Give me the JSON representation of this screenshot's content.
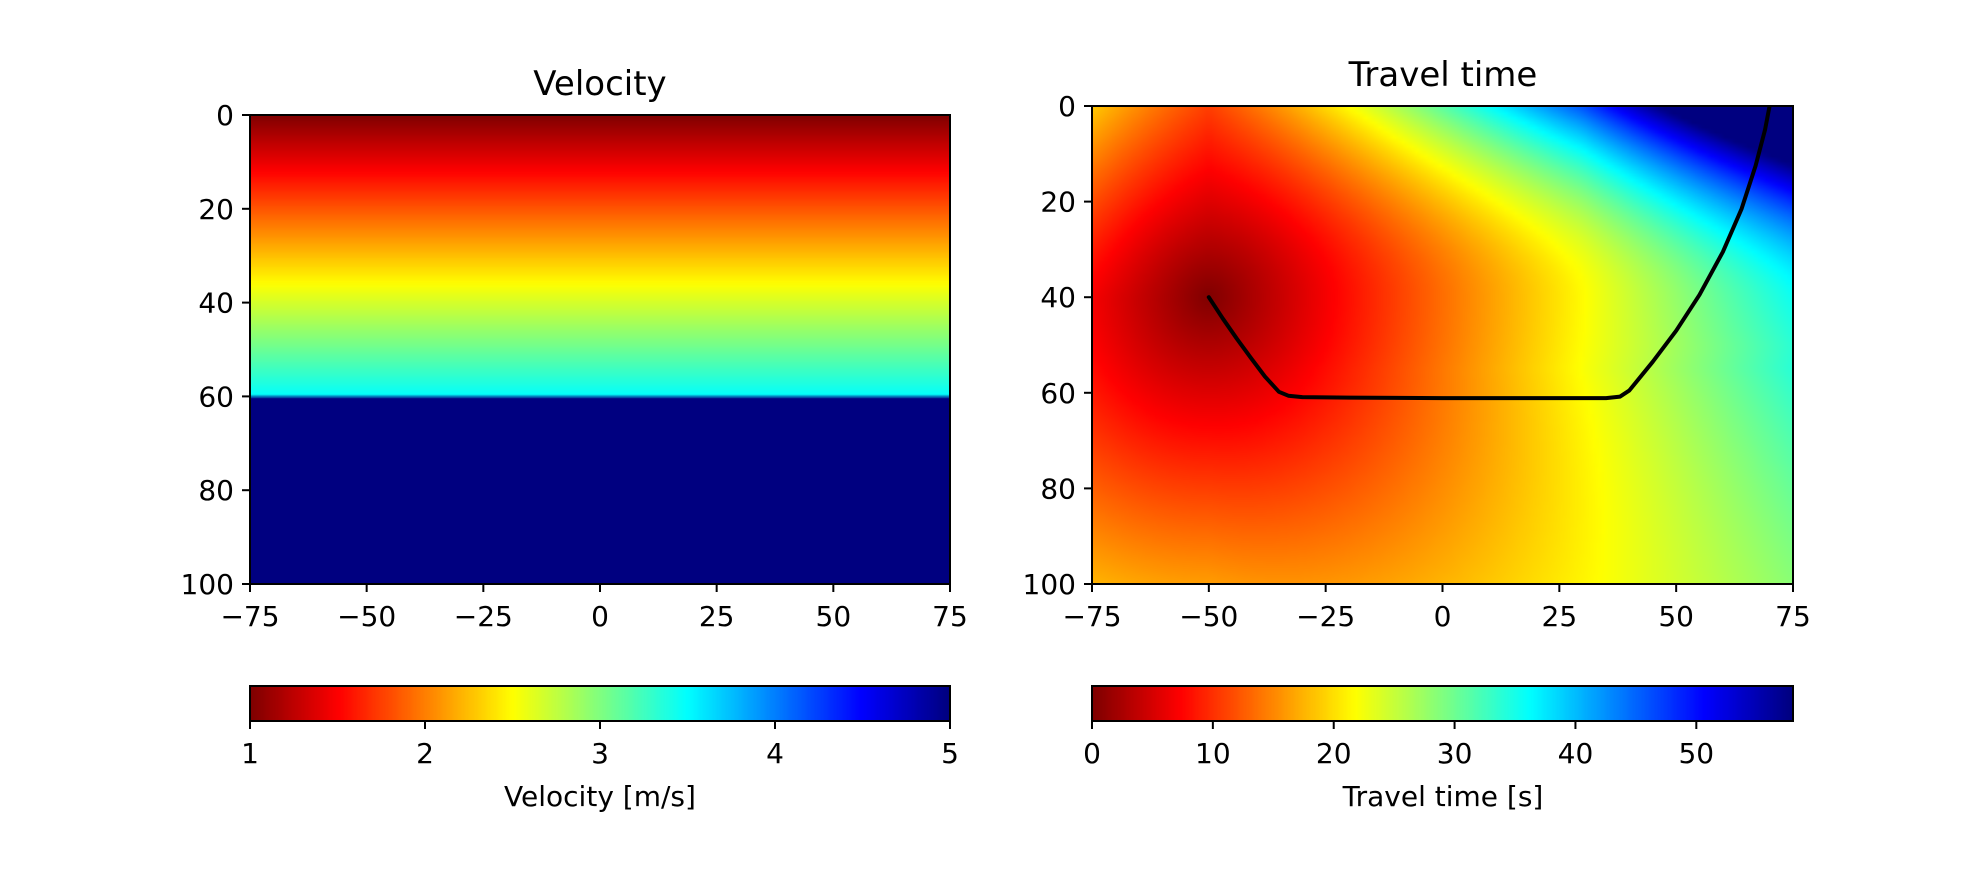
{
  "chart_data": [
    {
      "type": "heatmap",
      "title": "Velocity",
      "xlabel": "",
      "ylabel": "",
      "xlim": [
        -75,
        75
      ],
      "ylim": [
        100,
        0
      ],
      "xticks": [
        -75,
        -50,
        -25,
        0,
        25,
        50,
        75
      ],
      "yticks": [
        0,
        20,
        40,
        60,
        80,
        100
      ],
      "xtick_labels": [
        "−75",
        "−50",
        "−25",
        "0",
        "25",
        "50",
        "75"
      ],
      "ytick_labels": [
        "0",
        "20",
        "40",
        "60",
        "80",
        "100"
      ],
      "colormap": "jet_reversed",
      "field": {
        "description": "velocity increases linearly with depth from 1 m/s at depth 0 to 3.5 m/s at depth 60; constant 5 m/s below depth 60",
        "profile_depth": [
          0,
          60,
          60,
          100
        ],
        "profile_velocity": [
          1.0,
          3.5,
          5.0,
          5.0
        ]
      },
      "colorbar": {
        "label": "Velocity [m/s]",
        "range": [
          1,
          5
        ],
        "ticks": [
          1,
          2,
          3,
          4,
          5
        ],
        "tick_labels": [
          "1",
          "2",
          "3",
          "4",
          "5"
        ]
      }
    },
    {
      "type": "heatmap",
      "title": "Travel time",
      "xlabel": "",
      "ylabel": "",
      "xlim": [
        -75,
        75
      ],
      "ylim": [
        100,
        0
      ],
      "xticks": [
        -75,
        -50,
        -25,
        0,
        25,
        50,
        75
      ],
      "yticks": [
        0,
        20,
        40,
        60,
        80,
        100
      ],
      "xtick_labels": [
        "−75",
        "−50",
        "−25",
        "0",
        "25",
        "50",
        "75"
      ],
      "ytick_labels": [
        "0",
        "20",
        "40",
        "60",
        "80",
        "100"
      ],
      "colormap": "jet_reversed",
      "source": {
        "x": -50,
        "y": 40
      },
      "ray_path": {
        "x": [
          -50,
          -47,
          -44,
          -41,
          -38,
          -35,
          -33,
          -30,
          -20,
          0,
          20,
          35,
          38,
          40,
          45,
          50,
          55,
          60,
          64,
          67,
          69,
          70
        ],
        "y": [
          40,
          44.5,
          48.7,
          52.7,
          56.6,
          59.8,
          60.6,
          60.9,
          61.0,
          61.1,
          61.1,
          61.1,
          60.8,
          59.5,
          53.5,
          47.0,
          39.5,
          30.5,
          21.5,
          12.5,
          5.0,
          0
        ]
      },
      "colorbar": {
        "label": "Travel time [s]",
        "range": [
          0,
          58
        ],
        "ticks": [
          0,
          10,
          20,
          30,
          40,
          50
        ],
        "tick_labels": [
          "0",
          "10",
          "20",
          "30",
          "40",
          "50"
        ]
      }
    }
  ]
}
